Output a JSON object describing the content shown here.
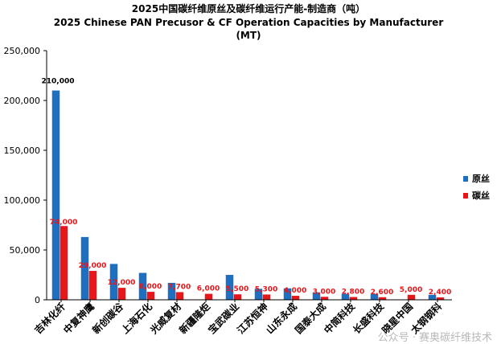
{
  "chart_data": {
    "type": "bar",
    "title": "2025中国碳纤维原丝及碳纤维运行产能-制造商（吨）",
    "subtitle_line1": "2025 Chinese PAN Precusor & CF Operation Capacities by Manufacturer",
    "subtitle_line2": "(MT)",
    "xlabel": "",
    "ylabel": "",
    "ylim": [
      0,
      250000
    ],
    "yticks": [
      0,
      50000,
      100000,
      150000,
      200000,
      250000
    ],
    "ytick_labels": [
      "0",
      "50,000",
      "100,000",
      "150,000",
      "200,000",
      "250,000"
    ],
    "grid": false,
    "legend_position": "right",
    "categories": [
      "吉林化纤",
      "中复神鹰",
      "新创碳谷",
      "上海石化",
      "光威复材",
      "新疆隆炬",
      "宝武碳业",
      "江苏恒神",
      "山东永成",
      "国泰大成",
      "中简科技",
      "长盛科技",
      "晓星中国",
      "太钢钢科"
    ],
    "series": [
      {
        "name": "原丝",
        "color": "#1f6fc1",
        "values": [
          210000,
          63000,
          36000,
          27000,
          17000,
          0,
          25000,
          11000,
          11500,
          7500,
          6000,
          6000,
          0,
          5000
        ],
        "labels": [
          "210,000",
          "",
          "",
          "",
          "",
          "",
          "",
          "",
          "",
          "",
          "",
          "",
          "",
          ""
        ]
      },
      {
        "name": "碳丝",
        "color": "#e8151b",
        "values": [
          74000,
          29000,
          12000,
          8000,
          7700,
          6000,
          5500,
          5300,
          4000,
          3000,
          2800,
          2600,
          5000,
          2400
        ],
        "labels": [
          "74,000",
          "29,000",
          "12,000",
          "8,000",
          "7,700",
          "6,000",
          "5,500",
          "5,300",
          "4,000",
          "3,000",
          "2,800",
          "2,600",
          "5,000",
          "2,400"
        ]
      }
    ]
  },
  "watermark": "公众号 · 赛奥碳纤维技术"
}
